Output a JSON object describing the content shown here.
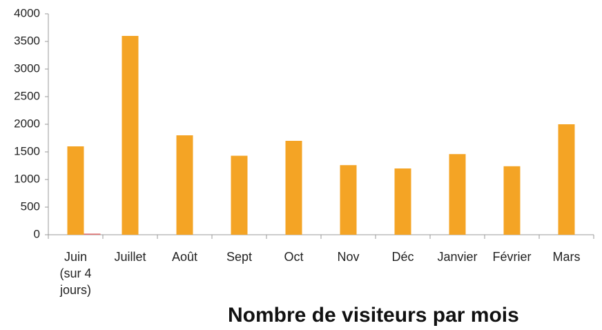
{
  "chart_data": {
    "type": "bar",
    "title": "Nombre de visiteurs par mois",
    "categories": [
      "Juin (sur 4 jours)",
      "Juillet",
      "Août",
      "Sept",
      "Oct",
      "Nov",
      "Déc",
      "Janvier",
      "Février",
      "Mars"
    ],
    "series": [
      {
        "color": "#f4a425",
        "values": [
          1600,
          3600,
          1800,
          1430,
          1700,
          1260,
          1200,
          1460,
          1240,
          2000
        ]
      },
      {
        "color": "#e07070",
        "values": [
          20,
          null,
          null,
          null,
          null,
          null,
          null,
          null,
          null,
          null
        ]
      }
    ],
    "ylim": [
      0,
      4000
    ],
    "yticks": [
      0,
      500,
      1000,
      1500,
      2000,
      2500,
      3000,
      3500,
      4000
    ],
    "grid": false
  }
}
